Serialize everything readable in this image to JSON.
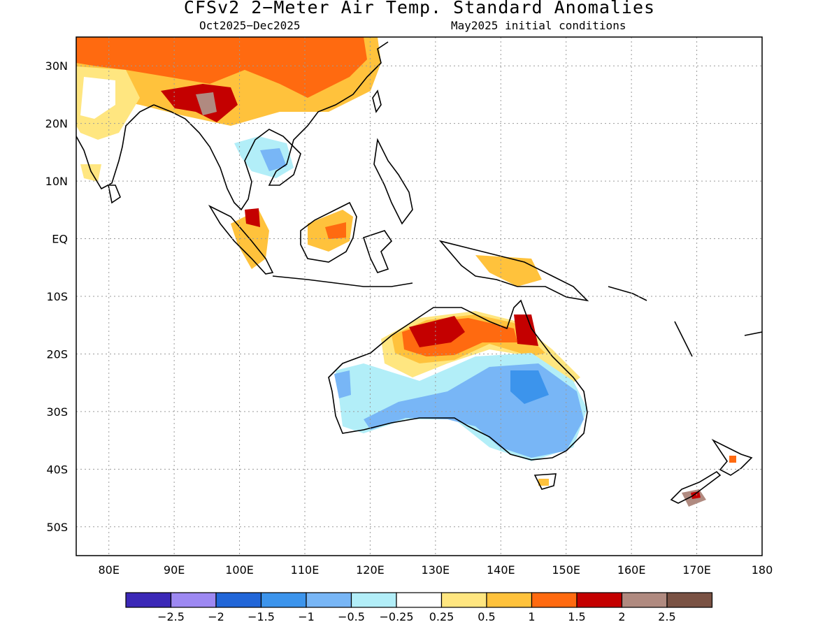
{
  "title": "CFSv2 2−Meter Air Temp. Standard Anomalies",
  "subtitle_left": "Oct2025−Dec2025",
  "subtitle_right": "May2025 initial conditions",
  "map": {
    "lon_range": [
      75,
      180
    ],
    "lat_range": [
      -55,
      35
    ],
    "lat_labels": [
      "30N",
      "20N",
      "10N",
      "EQ",
      "10S",
      "20S",
      "30S",
      "40S",
      "50S"
    ],
    "lat_values": [
      30,
      20,
      10,
      0,
      -10,
      -20,
      -30,
      -40,
      -50
    ],
    "lon_labels": [
      "80E",
      "90E",
      "100E",
      "110E",
      "120E",
      "130E",
      "140E",
      "150E",
      "160E",
      "170E",
      "180"
    ],
    "lon_values": [
      80,
      90,
      100,
      110,
      120,
      130,
      140,
      150,
      160,
      170,
      180
    ],
    "grid": "dotted"
  },
  "colorbar": {
    "colors": [
      "#3b28b7",
      "#9d88f2",
      "#2166d8",
      "#3c94ec",
      "#78b6f6",
      "#b2eef8",
      "#ffffff",
      "#ffe680",
      "#ffc23c",
      "#ff6a10",
      "#c40000",
      "#b08a80",
      "#7a5244"
    ],
    "labels": [
      "−2.5",
      "−2",
      "−1.5",
      "−1",
      "−0.5",
      "−0.25",
      "0.25",
      "0.5",
      "1",
      "1.5",
      "2",
      "2.5"
    ]
  }
}
